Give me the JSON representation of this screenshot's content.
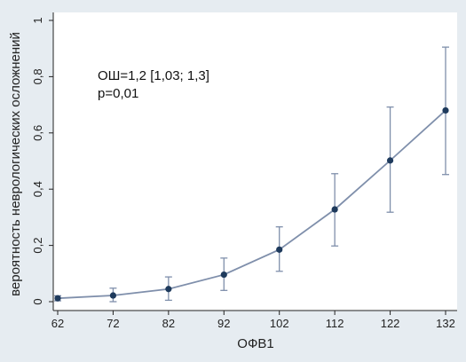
{
  "chart_data": {
    "type": "line",
    "xlabel": "ОФВ1",
    "ylabel": "вероятность неврологических осложнений",
    "x": [
      62,
      72,
      82,
      92,
      102,
      112,
      122,
      132
    ],
    "xticks": [
      "62",
      "72",
      "82",
      "92",
      "102",
      "112",
      "122",
      "132"
    ],
    "xlim": [
      62,
      132
    ],
    "yticks": [
      "0",
      "0,2",
      "0,4",
      "0,6",
      "0,8",
      "1"
    ],
    "ytick_values": [
      0,
      0.2,
      0.4,
      0.6,
      0.8,
      1
    ],
    "ylim": [
      0,
      1
    ],
    "series": [
      {
        "values": [
          0.012,
          0.022,
          0.045,
          0.096,
          0.185,
          0.328,
          0.502,
          0.68
        ],
        "lower": [
          0.003,
          0.0,
          0.005,
          0.04,
          0.108,
          0.198,
          0.318,
          0.452
        ],
        "upper": [
          0.021,
          0.048,
          0.088,
          0.155,
          0.266,
          0.455,
          0.692,
          0.905
        ]
      }
    ],
    "annotations": [
      "ОШ=1,2 [1,03; 1,3]",
      "p=0,01"
    ],
    "grid": false,
    "colors": {
      "background": "#e6ecf1",
      "plot_background": "#ffffff",
      "line": "#7f8fab",
      "marker": "#1e3a5c",
      "errorbar": "#7f8fab",
      "axis": "#222222"
    }
  }
}
